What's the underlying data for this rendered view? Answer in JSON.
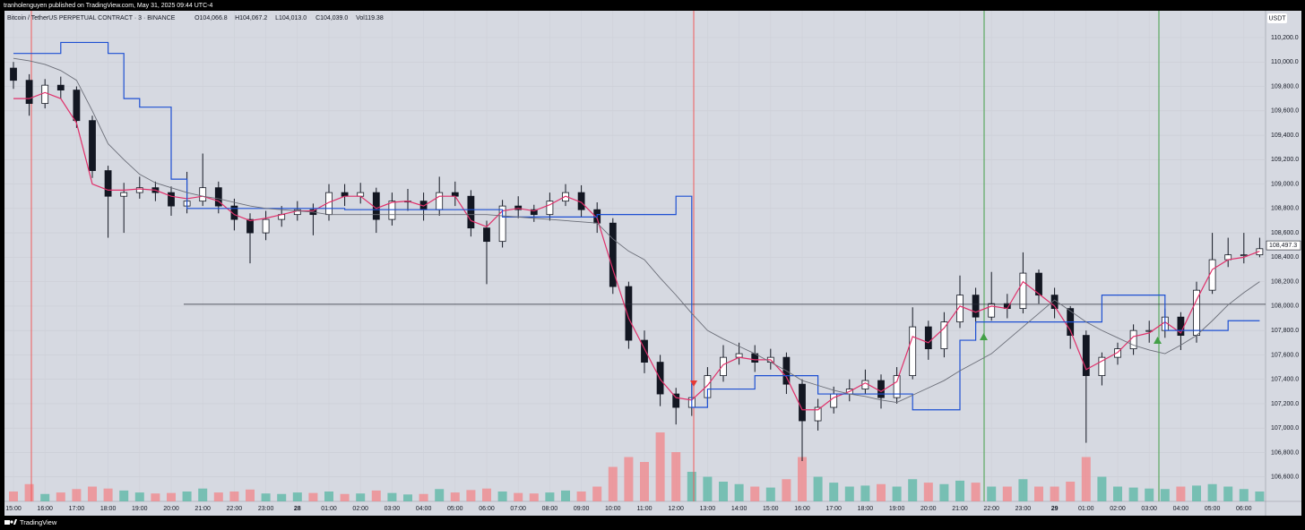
{
  "chart_data": {
    "type": "candlestick",
    "publisher": "tranholenguyen published on TradingView.com, May 31, 2025 09:44 UTC-4",
    "title": "Bitcoin / TetherUS PERPETUAL CONTRACT · 3 · BINANCE",
    "legend_values": [
      "O104,066.8",
      "H104,067.2",
      "L104,013.0",
      "C104,039.0",
      "Vol119.38"
    ],
    "currency": "USDT",
    "brand": "TradingView",
    "categories": [
      "15:00",
      null,
      "16:00",
      null,
      "17:00",
      null,
      "18:00",
      null,
      "19:00",
      null,
      "20:00",
      null,
      "21:00",
      null,
      "22:00",
      null,
      "23:00",
      null,
      "28",
      null,
      "01:00",
      null,
      "02:00",
      null,
      "03:00",
      null,
      "04:00",
      null,
      "05:00",
      null,
      "06:00",
      null,
      "07:00",
      null,
      "08:00",
      null,
      "09:00",
      null,
      "10:00",
      null,
      "11:00",
      null,
      "12:00",
      null,
      "13:00",
      null,
      "14:00",
      null,
      "15:00",
      null,
      "16:00",
      null,
      "17:00",
      null,
      "18:00",
      null,
      "19:00",
      null,
      "20:00",
      null,
      "21:00",
      null,
      "22:00",
      null,
      "23:00",
      null,
      "29",
      null,
      "01:00",
      null,
      "02:00",
      null,
      "03:00",
      null,
      "04:00",
      null,
      "05:00",
      null,
      "06:00",
      null
    ],
    "open": [
      109950,
      109850,
      109660,
      109810,
      109770,
      109520,
      109110,
      108900,
      108930,
      108970,
      108930,
      108820,
      108860,
      108970,
      108820,
      108710,
      108600,
      108710,
      108750,
      108790,
      108750,
      108930,
      108900,
      108930,
      108710,
      108860,
      108860,
      108790,
      108930,
      108900,
      108640,
      108530,
      108820,
      108790,
      108750,
      108860,
      108930,
      108790,
      108680,
      108160,
      107720,
      107540,
      107280,
      107170,
      107250,
      107430,
      107580,
      107610,
      107540,
      107580,
      107360,
      107060,
      107170,
      107280,
      107320,
      107390,
      107250,
      107430,
      107830,
      107650,
      107870,
      108090,
      107910,
      108020,
      107980,
      108270,
      108090,
      107980,
      107760,
      107430,
      107580,
      107650,
      107800,
      107800,
      107910,
      107760,
      108130,
      108380,
      108420,
      108420
    ],
    "high": [
      110000,
      109900,
      109860,
      109880,
      109800,
      109560,
      109150,
      109010,
      109060,
      109020,
      108980,
      109100,
      109250,
      109020,
      108880,
      108760,
      108780,
      108820,
      108860,
      108840,
      109000,
      109000,
      109010,
      108970,
      108930,
      108960,
      108930,
      109060,
      109020,
      108950,
      108700,
      108870,
      108900,
      108830,
      108930,
      109000,
      108990,
      108850,
      108720,
      108200,
      107800,
      107600,
      107330,
      107360,
      107500,
      107680,
      107700,
      107680,
      107650,
      107620,
      107400,
      107240,
      107340,
      107400,
      107480,
      107440,
      107500,
      107990,
      107880,
      107950,
      108250,
      108150,
      108280,
      108100,
      108440,
      108300,
      108150,
      108000,
      107800,
      107620,
      107700,
      107850,
      107880,
      107980,
      107950,
      108200,
      108600,
      108560,
      108600,
      108560
    ],
    "low": [
      109780,
      109560,
      109620,
      109700,
      109460,
      109050,
      108560,
      108600,
      108880,
      108860,
      108740,
      108760,
      108820,
      108760,
      108620,
      108350,
      108540,
      108650,
      108700,
      108580,
      108700,
      108820,
      108840,
      108600,
      108660,
      108780,
      108700,
      108740,
      108820,
      108570,
      108180,
      108480,
      108720,
      108690,
      108700,
      108820,
      108730,
      108600,
      108100,
      107650,
      107450,
      107180,
      107030,
      107100,
      107200,
      107380,
      107520,
      107460,
      107480,
      107280,
      106730,
      106980,
      107120,
      107220,
      107280,
      107160,
      107200,
      107400,
      107560,
      107580,
      107820,
      107850,
      107880,
      107900,
      107940,
      108020,
      107900,
      107650,
      106880,
      107350,
      107520,
      107600,
      107700,
      107740,
      107640,
      107700,
      108100,
      108320,
      108350,
      108400
    ],
    "close": [
      109850,
      109660,
      109810,
      109770,
      109520,
      109110,
      108900,
      108930,
      108970,
      108930,
      108820,
      108860,
      108970,
      108820,
      108710,
      108600,
      108710,
      108750,
      108790,
      108750,
      108930,
      108900,
      108930,
      108710,
      108860,
      108860,
      108790,
      108930,
      108900,
      108640,
      108530,
      108820,
      108790,
      108750,
      108860,
      108930,
      108790,
      108680,
      108160,
      107720,
      107540,
      107280,
      107170,
      107250,
      107430,
      107580,
      107610,
      107540,
      107580,
      107360,
      107060,
      107170,
      107280,
      107320,
      107390,
      107250,
      107430,
      107830,
      107650,
      107870,
      108090,
      107910,
      108020,
      107980,
      108270,
      108090,
      107980,
      107760,
      107430,
      107580,
      107650,
      107800,
      107800,
      107910,
      107760,
      108130,
      108380,
      108420,
      108420,
      108470
    ],
    "volume": [
      200,
      350,
      150,
      180,
      250,
      300,
      260,
      220,
      180,
      160,
      170,
      200,
      260,
      180,
      200,
      240,
      160,
      150,
      180,
      170,
      200,
      150,
      160,
      220,
      170,
      140,
      150,
      250,
      180,
      230,
      260,
      200,
      170,
      160,
      180,
      220,
      200,
      300,
      700,
      900,
      800,
      1400,
      1000,
      600,
      500,
      400,
      350,
      300,
      280,
      450,
      900,
      500,
      380,
      300,
      320,
      350,
      300,
      450,
      380,
      350,
      420,
      380,
      300,
      300,
      450,
      300,
      300,
      400,
      900,
      500,
      300,
      280,
      260,
      250,
      300,
      320,
      350,
      300,
      250,
      200
    ],
    "volume_ylim": [
      0,
      2000
    ],
    "up_color": "#ffffff",
    "down_color": "#131722",
    "volume_up_color": "#5fb8a8",
    "volume_down_color": "#f08a8f",
    "series": [
      {
        "color": "#e0306a",
        "step": false,
        "values": [
          109700,
          109700,
          109750,
          109700,
          109500,
          109000,
          108950,
          108950,
          108960,
          108950,
          108900,
          108880,
          108900,
          108860,
          108750,
          108700,
          108720,
          108750,
          108780,
          108780,
          108850,
          108900,
          108900,
          108800,
          108850,
          108860,
          108820,
          108900,
          108900,
          108700,
          108650,
          108780,
          108800,
          108780,
          108830,
          108900,
          108850,
          108720,
          108300,
          107900,
          107650,
          107400,
          107250,
          107230,
          107350,
          107520,
          107580,
          107560,
          107560,
          107420,
          107150,
          107150,
          107250,
          107300,
          107370,
          107300,
          107380,
          107750,
          107700,
          107820,
          108000,
          107950,
          108000,
          107980,
          108200,
          108100,
          108000,
          107800,
          107480,
          107550,
          107620,
          107750,
          107780,
          107870,
          107780,
          108050,
          108300,
          108380,
          108400,
          108450
        ]
      },
      {
        "color": "#1e50d2",
        "step": true,
        "values": [
          110070,
          110070,
          110070,
          110160,
          110160,
          110160,
          110070,
          109700,
          109630,
          109630,
          109040,
          108800,
          108800,
          108800,
          108800,
          108800,
          108800,
          108800,
          108800,
          108800,
          108800,
          108790,
          108790,
          108790,
          108790,
          108790,
          108790,
          108790,
          108790,
          108790,
          108790,
          108730,
          108730,
          108730,
          108730,
          108730,
          108730,
          108750,
          108750,
          108750,
          108750,
          108750,
          108900,
          107170,
          107320,
          107320,
          107320,
          107430,
          107430,
          107430,
          107430,
          107280,
          107280,
          107280,
          107280,
          107280,
          107280,
          107150,
          107150,
          107150,
          107720,
          107870,
          107870,
          107870,
          107870,
          107870,
          107870,
          107870,
          107870,
          108090,
          108090,
          108090,
          108090,
          107800,
          107800,
          107800,
          107800,
          107880,
          107880,
          107880
        ]
      },
      {
        "color": "#6b6e78",
        "step": false,
        "values": [
          110030,
          110010,
          109980,
          109930,
          109850,
          109600,
          109330,
          109200,
          109080,
          109010,
          108970,
          108930,
          108900,
          108880,
          108850,
          108820,
          108800,
          108790,
          108780,
          108770,
          108750,
          108750,
          108750,
          108750,
          108750,
          108750,
          108750,
          108750,
          108750,
          108750,
          108750,
          108740,
          108730,
          108720,
          108710,
          108700,
          108690,
          108680,
          108550,
          108450,
          108380,
          108230,
          108090,
          107940,
          107800,
          107730,
          107670,
          107610,
          107540,
          107470,
          107390,
          107350,
          107310,
          107280,
          107260,
          107230,
          107210,
          107270,
          107330,
          107390,
          107470,
          107540,
          107610,
          107720,
          107830,
          107940,
          108050,
          107960,
          107870,
          107800,
          107740,
          107680,
          107640,
          107610,
          107680,
          107760,
          107880,
          108010,
          108110,
          108200
        ]
      }
    ],
    "hline": 108015,
    "last_price": {
      "value": 108497.3,
      "label": "108,497.3"
    },
    "ylim": [
      106400,
      110420
    ],
    "yticks": [
      {
        "value": 110200,
        "label": "110,200.0"
      },
      {
        "value": 110000,
        "label": "110,000.0"
      },
      {
        "value": 109800,
        "label": "109,800.0"
      },
      {
        "value": 109600,
        "label": "109,600.0"
      },
      {
        "value": 109400,
        "label": "109,400.0"
      },
      {
        "value": 109200,
        "label": "109,200.0"
      },
      {
        "value": 109000,
        "label": "109,000.0"
      },
      {
        "value": 108800,
        "label": "108,800.0"
      },
      {
        "value": 108600,
        "label": "108,600.0"
      },
      {
        "value": 108400,
        "label": "108,400.0"
      },
      {
        "value": 108200,
        "label": "108,200.0"
      },
      {
        "value": 108000,
        "label": "108,000.0"
      },
      {
        "value": 107800,
        "label": "107,800.0"
      },
      {
        "value": 107600,
        "label": "107,600.0"
      },
      {
        "value": 107400,
        "label": "107,400.0"
      },
      {
        "value": 107200,
        "label": "107,200.0"
      },
      {
        "value": 107000,
        "label": "107,000.0"
      },
      {
        "value": 106800,
        "label": "106,800.0"
      },
      {
        "value": 106600,
        "label": "106,600.0"
      }
    ],
    "grid": true
  }
}
